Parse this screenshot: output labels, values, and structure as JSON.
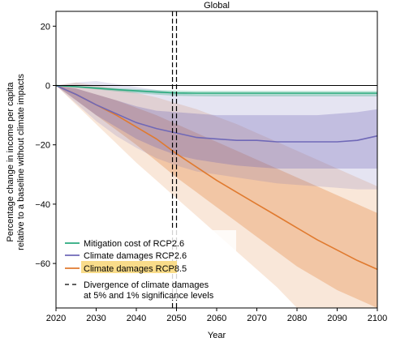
{
  "chart_data": {
    "type": "line",
    "title": "Global",
    "xlabel": "Year",
    "ylabel_line1": "Percentage change in income per capita",
    "ylabel_line2": "relative to a baseline without climate impacts",
    "xlim": [
      2020,
      2100
    ],
    "ylim": [
      -75,
      25
    ],
    "xticks": [
      2020,
      2030,
      2040,
      2050,
      2060,
      2070,
      2080,
      2090,
      2100
    ],
    "yticks": [
      20,
      0,
      -20,
      -40,
      -60
    ],
    "grid": false,
    "legend_position": "bottom-left",
    "divergence_years": [
      2049,
      2050
    ],
    "series": [
      {
        "name": "Climate damages RCP8.5",
        "color": "#e07a2f",
        "x": [
          2020,
          2025,
          2030,
          2035,
          2040,
          2045,
          2050,
          2055,
          2060,
          2065,
          2070,
          2075,
          2080,
          2085,
          2090,
          2095,
          2100
        ],
        "values": [
          0,
          -3,
          -6.5,
          -10,
          -14,
          -18,
          -23,
          -27.5,
          -32,
          -36,
          -40,
          -44,
          -48,
          -52,
          -55.5,
          -59,
          -62
        ],
        "band_inner": {
          "lower": [
            0,
            -5,
            -10,
            -15,
            -20,
            -25.5,
            -31,
            -36,
            -41,
            -46,
            -51,
            -56,
            -61,
            -65,
            -69,
            -72,
            -75
          ],
          "upper": [
            0,
            -1,
            -3,
            -5,
            -7.5,
            -10,
            -13,
            -16,
            -19,
            -22,
            -25,
            -28,
            -31,
            -34,
            -37,
            -40,
            -43
          ]
        },
        "band_outer": {
          "lower": [
            0,
            -6.5,
            -13,
            -19.5,
            -26,
            -32,
            -38,
            -44,
            -50,
            -56,
            -62,
            -68,
            -75,
            -75,
            -75,
            -75,
            -75
          ],
          "upper": [
            0,
            1,
            0,
            -1,
            -2.5,
            -4,
            -6,
            -8,
            -10.5,
            -13,
            -16,
            -19,
            -22,
            -25,
            -28,
            -31,
            -34
          ]
        }
      },
      {
        "name": "Climate damages RCP2.6",
        "color": "#6f68b7",
        "x": [
          2020,
          2025,
          2030,
          2035,
          2040,
          2045,
          2050,
          2055,
          2060,
          2065,
          2070,
          2075,
          2080,
          2085,
          2090,
          2095,
          2100
        ],
        "values": [
          0,
          -3,
          -6.5,
          -9.5,
          -12.5,
          -14.5,
          -16,
          -17.5,
          -18,
          -18.5,
          -18.5,
          -19,
          -19,
          -19,
          -19,
          -18.5,
          -17
        ],
        "band_inner": {
          "lower": [
            0,
            -5,
            -10,
            -14,
            -18,
            -21,
            -23.5,
            -25,
            -26,
            -27,
            -27.5,
            -28,
            -28,
            -28,
            -28,
            -28,
            -28
          ],
          "upper": [
            0,
            -1,
            -3,
            -5,
            -7,
            -8.5,
            -9,
            -9.5,
            -10,
            -10,
            -10,
            -10,
            -10,
            -10,
            -9.5,
            -9,
            -8
          ]
        },
        "band_outer": {
          "lower": [
            0,
            -6,
            -12,
            -17,
            -21,
            -24.5,
            -27,
            -29,
            -30,
            -31,
            -32,
            -33,
            -33.5,
            -34,
            -34.5,
            -35,
            -35
          ],
          "upper": [
            0,
            1,
            1.5,
            0.5,
            -0.5,
            -1.5,
            -2.5,
            -3,
            -3,
            -3,
            -3,
            -3,
            -3,
            -3,
            -3,
            -3,
            -3
          ]
        }
      },
      {
        "name": "Mitigation cost of RCP2.6",
        "color": "#2aaa7e",
        "x": [
          2020,
          2025,
          2030,
          2035,
          2040,
          2045,
          2050,
          2055,
          2060,
          2065,
          2070,
          2075,
          2080,
          2085,
          2090,
          2095,
          2100
        ],
        "values": [
          0,
          -0.4,
          -0.9,
          -1.4,
          -1.8,
          -2.2,
          -2.5,
          -2.6,
          -2.6,
          -2.6,
          -2.6,
          -2.6,
          -2.6,
          -2.6,
          -2.6,
          -2.6,
          -2.6
        ],
        "band_inner": {
          "lower": [
            0,
            -0.6,
            -1.3,
            -2,
            -2.6,
            -3.1,
            -3.5,
            -3.6,
            -3.7,
            -3.7,
            -3.7,
            -3.7,
            -3.7,
            -3.7,
            -3.7,
            -3.7,
            -3.7
          ],
          "upper": [
            0,
            -0.2,
            -0.5,
            -0.9,
            -1.2,
            -1.5,
            -1.7,
            -1.8,
            -1.8,
            -1.8,
            -1.8,
            -1.8,
            -1.8,
            -1.8,
            -1.8,
            -1.8,
            -1.8
          ]
        }
      }
    ],
    "legend": {
      "mitigation_label": "Mitigation cost of RCP2.6",
      "rcp26_label": "Climate damages RCP2.6",
      "rcp85_label": "Climate damages RCP8.5",
      "divergence_label_line1": "Divergence of climate damages",
      "divergence_label_line2": "at 5% and 1% significance levels",
      "highlight_color": "#f9dc8a"
    }
  }
}
